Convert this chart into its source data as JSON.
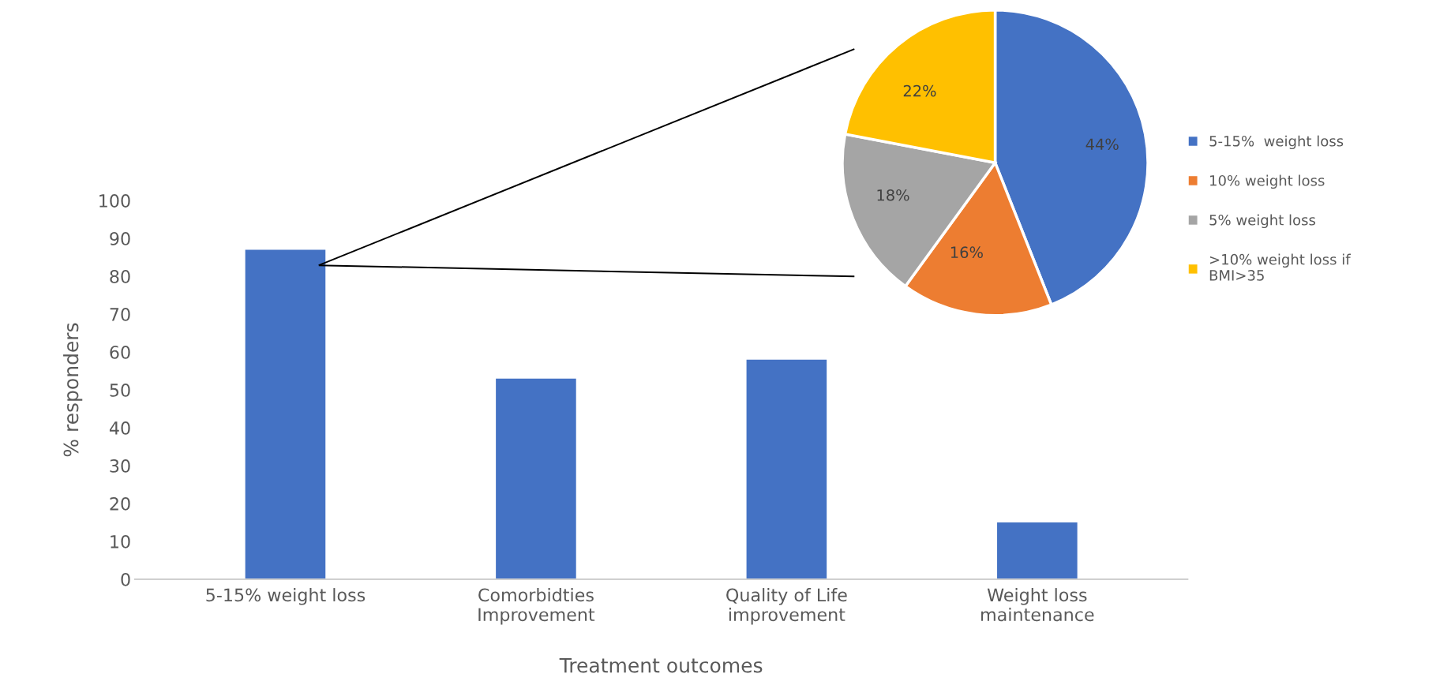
{
  "chart_data": [
    {
      "type": "bar",
      "categories": [
        "5-15% weight loss",
        "Comorbidties\nImprovement",
        "Quality of Life\nimprovement",
        "Weight loss\nmaintenance"
      ],
      "values": [
        87,
        53,
        58,
        15
      ],
      "color": "#4472c4",
      "ylim": [
        0,
        100
      ],
      "yticks": [
        0,
        10,
        20,
        30,
        40,
        50,
        60,
        70,
        80,
        90,
        100
      ],
      "xlabel": "Treatment outcomes",
      "ylabel": "% responders",
      "grid": false
    },
    {
      "type": "pie",
      "categories": [
        "5-15%  weight loss",
        "10% weight loss",
        "5% weight loss",
        ">10% weight loss if\nBMI>35"
      ],
      "values": [
        44,
        16,
        18,
        22
      ],
      "value_labels": [
        "44%",
        "16%",
        "18%",
        "22%"
      ],
      "colors": [
        "#4472c4",
        "#ed7d31",
        "#a5a5a5",
        "#ffc000"
      ],
      "legend": "right"
    }
  ]
}
